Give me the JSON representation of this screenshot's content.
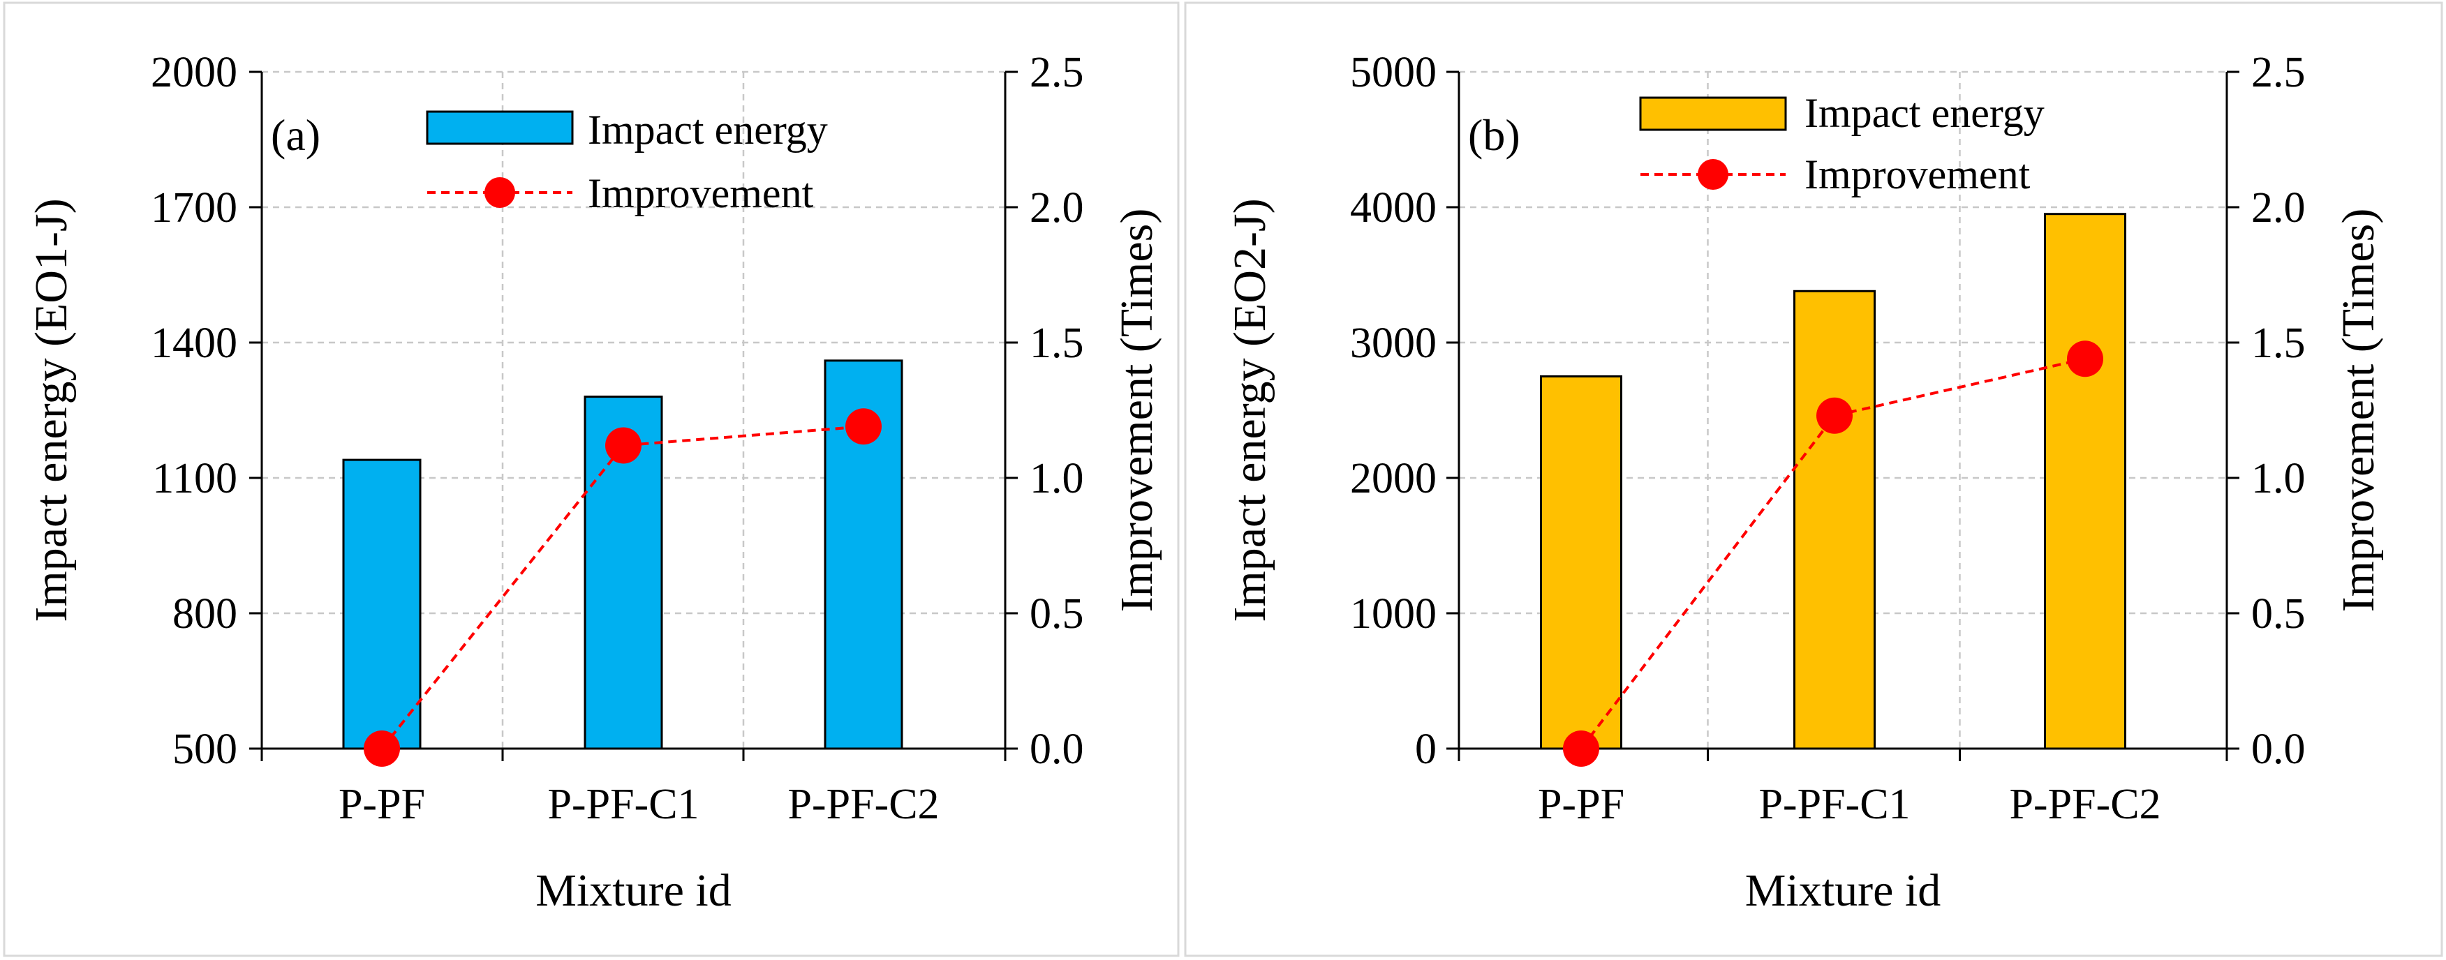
{
  "colors": {
    "bar_a": "#00B0F0",
    "bar_b": "#FFC000",
    "improvement": "#FF0000",
    "bar_edge": "#000000",
    "grid": "#C8C8C8"
  },
  "chart_data": [
    {
      "type": "bar",
      "panel_label": "(a)",
      "categories": [
        "P-PF",
        "P-PF-C1",
        "P-PF-C2"
      ],
      "xlabel": "Mixture id",
      "ylabel": "Impact energy (EO1-J)",
      "y2label": "Improvement (Times)",
      "ylim": [
        500,
        2000
      ],
      "y2lim": [
        0.0,
        2.5
      ],
      "yticks": [
        "500",
        "800",
        "1100",
        "1400",
        "1700",
        "2000"
      ],
      "y2ticks": [
        "0.0",
        "0.5",
        "1.0",
        "1.5",
        "2.0",
        "2.5"
      ],
      "grid": true,
      "legend": "top-center",
      "series": [
        {
          "name": "Impact energy",
          "kind": "bar",
          "axis": "left",
          "values": [
            1140,
            1280,
            1360
          ]
        },
        {
          "name": "Improvement",
          "kind": "line",
          "axis": "right",
          "values": [
            0.0,
            1.12,
            1.19
          ]
        }
      ]
    },
    {
      "type": "bar",
      "panel_label": "(b)",
      "categories": [
        "P-PF",
        "P-PF-C1",
        "P-PF-C2"
      ],
      "xlabel": "Mixture id",
      "ylabel": "Impact energy (EO2-J)",
      "y2label": "Improvement (Times)",
      "ylim": [
        0,
        5000
      ],
      "y2lim": [
        0.0,
        2.5
      ],
      "yticks": [
        "0",
        "1000",
        "2000",
        "3000",
        "4000",
        "5000"
      ],
      "y2ticks": [
        "0.0",
        "0.5",
        "1.0",
        "1.5",
        "2.0",
        "2.5"
      ],
      "grid": true,
      "legend": "top-center",
      "series": [
        {
          "name": "Impact energy",
          "kind": "bar",
          "axis": "left",
          "values": [
            2750,
            3380,
            3950
          ]
        },
        {
          "name": "Improvement",
          "kind": "line",
          "axis": "right",
          "values": [
            0.0,
            1.23,
            1.44
          ]
        }
      ]
    }
  ]
}
